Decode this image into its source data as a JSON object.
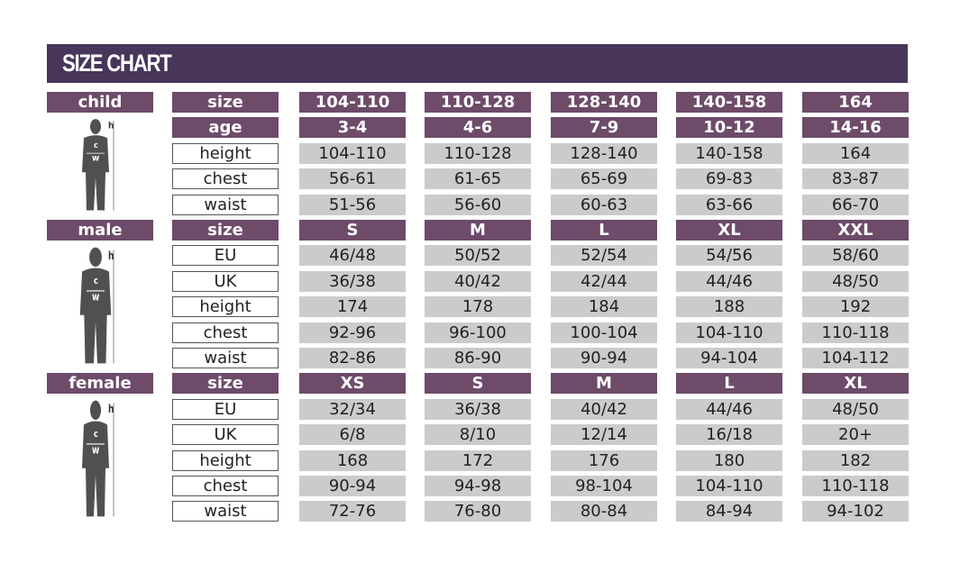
{
  "title": "SIZE CHART",
  "colors": {
    "header": "#47355a",
    "label": "#6d4b69",
    "value_cell": "#cbcbcb"
  },
  "sections": [
    {
      "category": "child",
      "figure": "child-silhouette-icon",
      "rows": [
        {
          "label": "size",
          "header": true,
          "values": [
            "104-110",
            "110-128",
            "128-140",
            "140-158",
            "164"
          ]
        },
        {
          "label": "age",
          "header": true,
          "values": [
            "3-4",
            "4-6",
            "7-9",
            "10-12",
            "14-16"
          ]
        },
        {
          "label": "height",
          "header": false,
          "values": [
            "104-110",
            "110-128",
            "128-140",
            "140-158",
            "164"
          ]
        },
        {
          "label": "chest",
          "header": false,
          "values": [
            "56-61",
            "61-65",
            "65-69",
            "69-83",
            "83-87"
          ]
        },
        {
          "label": "waist",
          "header": false,
          "values": [
            "51-56",
            "56-60",
            "60-63",
            "63-66",
            "66-70"
          ]
        }
      ]
    },
    {
      "category": "male",
      "figure": "male-silhouette-icon",
      "rows": [
        {
          "label": "size",
          "header": true,
          "values": [
            "S",
            "M",
            "L",
            "XL",
            "XXL"
          ]
        },
        {
          "label": "EU",
          "header": false,
          "values": [
            "46/48",
            "50/52",
            "52/54",
            "54/56",
            "58/60"
          ]
        },
        {
          "label": "UK",
          "header": false,
          "values": [
            "36/38",
            "40/42",
            "42/44",
            "44/46",
            "48/50"
          ]
        },
        {
          "label": "height",
          "header": false,
          "values": [
            "174",
            "178",
            "184",
            "188",
            "192"
          ]
        },
        {
          "label": "chest",
          "header": false,
          "values": [
            "92-96",
            "96-100",
            "100-104",
            "104-110",
            "110-118"
          ]
        },
        {
          "label": "waist",
          "header": false,
          "values": [
            "82-86",
            "86-90",
            "90-94",
            "94-104",
            "104-112"
          ]
        }
      ]
    },
    {
      "category": "female",
      "figure": "female-silhouette-icon",
      "rows": [
        {
          "label": "size",
          "header": true,
          "values": [
            "XS",
            "S",
            "M",
            "L",
            "XL"
          ]
        },
        {
          "label": "EU",
          "header": false,
          "values": [
            "32/34",
            "36/38",
            "40/42",
            "44/46",
            "48/50"
          ]
        },
        {
          "label": "UK",
          "header": false,
          "values": [
            "6/8",
            "8/10",
            "12/14",
            "16/18",
            "20+"
          ]
        },
        {
          "label": "height",
          "header": false,
          "values": [
            "168",
            "172",
            "176",
            "180",
            "182"
          ]
        },
        {
          "label": "chest",
          "header": false,
          "values": [
            "90-94",
            "94-98",
            "98-104",
            "104-110",
            "110-118"
          ]
        },
        {
          "label": "waist",
          "header": false,
          "values": [
            "72-76",
            "76-80",
            "80-84",
            "84-94",
            "94-102"
          ]
        }
      ]
    }
  ],
  "figure_marks": {
    "h": "h",
    "c": "c",
    "w": "w"
  }
}
